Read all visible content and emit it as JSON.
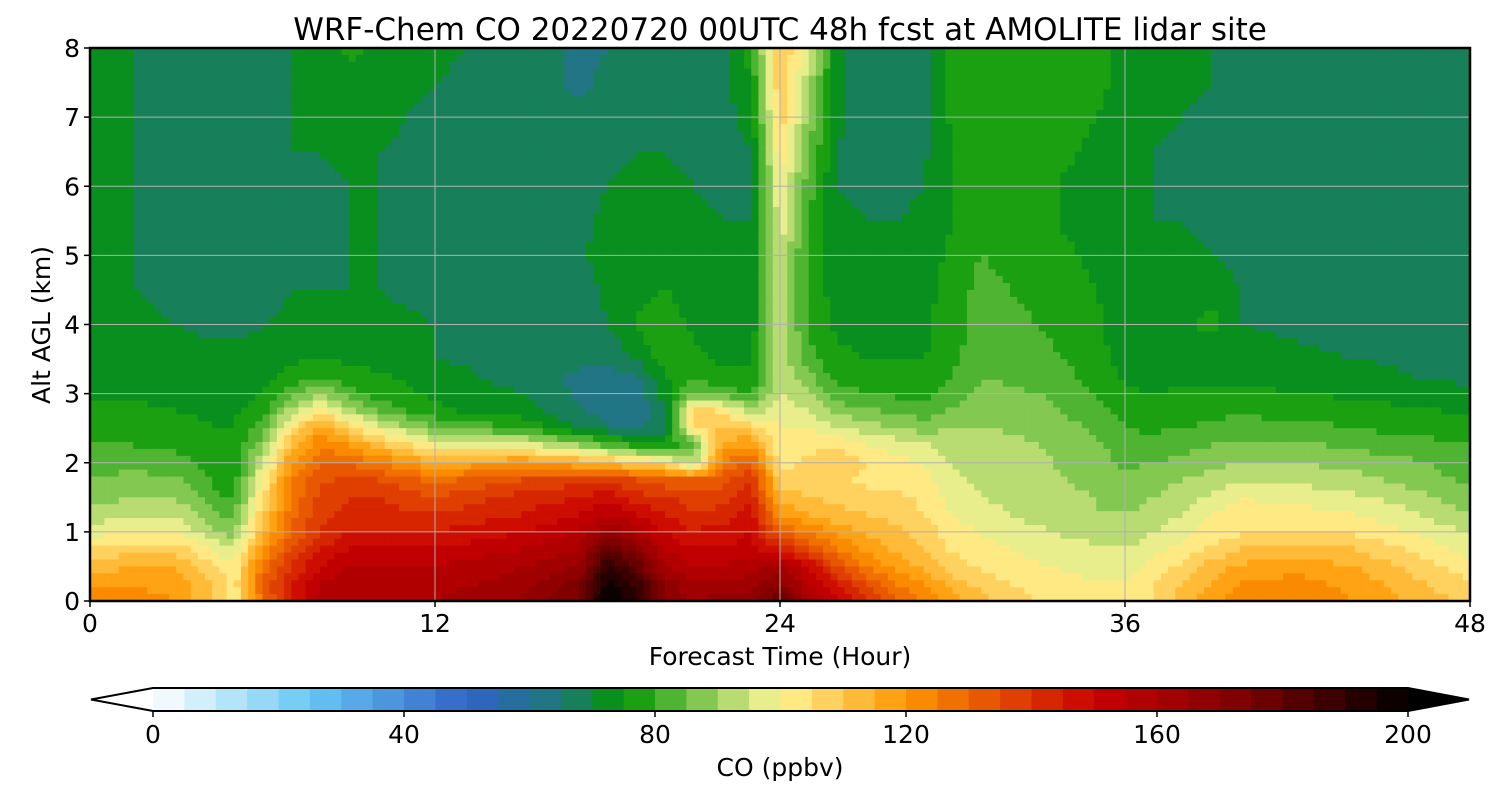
{
  "chart_data": {
    "type": "heatmap",
    "title": "WRF-Chem CO  20220720 00UTC 48h fcst at AMOLITE lidar site",
    "xlabel": "Forecast Time (Hour)",
    "ylabel": "Alt AGL (km)",
    "xlim": [
      0,
      48
    ],
    "ylim": [
      0,
      8
    ],
    "xticks": [
      "0",
      "12",
      "24",
      "36",
      "48"
    ],
    "yticks": [
      "0",
      "1",
      "2",
      "3",
      "4",
      "5",
      "6",
      "7",
      "8"
    ],
    "grid": true,
    "colorbar": {
      "label": "CO  (ppbv)",
      "range": [
        0,
        200
      ],
      "ticks": [
        "0",
        "40",
        "80",
        "120",
        "160",
        "200"
      ],
      "extend": "both",
      "stops": [
        {
          "v": 0,
          "c": "#ffffff"
        },
        {
          "v": 25,
          "c": "#68c8f4"
        },
        {
          "v": 50,
          "c": "#3064c8"
        },
        {
          "v": 65,
          "c": "#1e7878"
        },
        {
          "v": 75,
          "c": "#009600"
        },
        {
          "v": 95,
          "c": "#d2e682"
        },
        {
          "v": 100,
          "c": "#fff596"
        },
        {
          "v": 120,
          "c": "#ff9600"
        },
        {
          "v": 150,
          "c": "#c80000"
        },
        {
          "v": 175,
          "c": "#780000"
        },
        {
          "v": 200,
          "c": "#000000"
        }
      ]
    },
    "x": [
      0,
      1.5,
      3,
      4.5,
      5,
      6,
      7,
      8,
      9,
      10,
      12,
      15,
      17,
      18,
      19,
      20,
      21,
      22,
      23,
      24,
      25,
      26,
      27,
      28,
      29,
      30,
      31,
      33,
      35,
      36,
      37,
      38,
      39,
      40,
      42,
      44,
      46,
      48
    ],
    "y": [
      0,
      0.25,
      0.5,
      0.75,
      1.0,
      1.25,
      1.5,
      1.75,
      2.0,
      2.25,
      2.5,
      2.75,
      3.0,
      3.25,
      3.5,
      3.75,
      4.0,
      4.5,
      5.0,
      5.5,
      6.0,
      6.5,
      7.0,
      7.5,
      8.0
    ],
    "z": [
      [
        125,
        122,
        120,
        108,
        100,
        128,
        145,
        158,
        160,
        160,
        160,
        165,
        175,
        200,
        190,
        170,
        165,
        168,
        170,
        180,
        160,
        150,
        140,
        130,
        125,
        118,
        112,
        105,
        102,
        100,
        105,
        112,
        118,
        122,
        124,
        120,
        114,
        108
      ],
      [
        118,
        120,
        118,
        108,
        102,
        130,
        145,
        155,
        158,
        158,
        158,
        162,
        172,
        198,
        188,
        168,
        160,
        160,
        162,
        170,
        155,
        145,
        135,
        125,
        120,
        112,
        108,
        102,
        100,
        100,
        105,
        110,
        115,
        120,
        122,
        118,
        112,
        105
      ],
      [
        112,
        115,
        115,
        105,
        100,
        128,
        140,
        150,
        155,
        155,
        155,
        160,
        165,
        190,
        180,
        160,
        155,
        155,
        158,
        160,
        150,
        135,
        125,
        118,
        114,
        108,
        104,
        100,
        99,
        98,
        102,
        106,
        112,
        116,
        118,
        115,
        108,
        102
      ],
      [
        105,
        108,
        108,
        98,
        95,
        120,
        135,
        145,
        150,
        150,
        150,
        155,
        160,
        180,
        170,
        155,
        150,
        150,
        152,
        145,
        135,
        125,
        118,
        114,
        110,
        104,
        101,
        99,
        96,
        95,
        98,
        102,
        106,
        110,
        112,
        110,
        104,
        98
      ],
      [
        98,
        100,
        100,
        90,
        88,
        112,
        130,
        140,
        145,
        145,
        145,
        150,
        155,
        165,
        158,
        150,
        145,
        148,
        150,
        130,
        125,
        118,
        114,
        112,
        108,
        102,
        100,
        96,
        92,
        92,
        95,
        98,
        102,
        104,
        105,
        104,
        100,
        94
      ],
      [
        92,
        94,
        94,
        85,
        84,
        108,
        128,
        138,
        142,
        142,
        140,
        145,
        150,
        155,
        150,
        145,
        140,
        142,
        148,
        120,
        115,
        112,
        110,
        108,
        105,
        100,
        97,
        93,
        90,
        90,
        92,
        95,
        100,
        102,
        102,
        100,
        96,
        90
      ],
      [
        88,
        90,
        90,
        80,
        80,
        104,
        126,
        136,
        140,
        140,
        135,
        142,
        145,
        148,
        142,
        140,
        138,
        138,
        145,
        112,
        110,
        108,
        106,
        106,
        104,
        98,
        95,
        92,
        90,
        88,
        90,
        92,
        96,
        100,
        98,
        96,
        92,
        86
      ],
      [
        85,
        87,
        86,
        78,
        78,
        100,
        124,
        134,
        136,
        135,
        128,
        135,
        138,
        140,
        135,
        132,
        130,
        132,
        140,
        108,
        108,
        106,
        104,
        104,
        102,
        96,
        94,
        92,
        88,
        86,
        88,
        90,
        92,
        95,
        94,
        92,
        88,
        84
      ],
      [
        82,
        83,
        82,
        76,
        76,
        94,
        120,
        130,
        130,
        125,
        115,
        120,
        115,
        112,
        108,
        104,
        90,
        125,
        132,
        102,
        106,
        108,
        105,
        102,
        100,
        94,
        93,
        91,
        87,
        84,
        85,
        86,
        88,
        90,
        90,
        88,
        86,
        82
      ],
      [
        80,
        80,
        79,
        76,
        76,
        88,
        112,
        124,
        120,
        112,
        100,
        98,
        90,
        84,
        78,
        76,
        84,
        118,
        120,
        100,
        104,
        104,
        100,
        98,
        96,
        92,
        92,
        90,
        86,
        82,
        82,
        84,
        85,
        86,
        86,
        84,
        82,
        80
      ],
      [
        78,
        78,
        77,
        75,
        75,
        82,
        104,
        118,
        108,
        98,
        85,
        80,
        70,
        66,
        64,
        68,
        104,
        110,
        108,
        100,
        100,
        96,
        92,
        90,
        88,
        90,
        90,
        89,
        84,
        80,
        79,
        80,
        81,
        82,
        82,
        80,
        78,
        78
      ],
      [
        76,
        76,
        75,
        74,
        74,
        78,
        92,
        104,
        92,
        84,
        76,
        72,
        66,
        62,
        60,
        70,
        108,
        104,
        92,
        98,
        95,
        88,
        86,
        84,
        82,
        86,
        88,
        87,
        82,
        78,
        77,
        78,
        79,
        79,
        78,
        77,
        76,
        74
      ],
      [
        74,
        74,
        74,
        73,
        73,
        75,
        82,
        90,
        82,
        78,
        74,
        70,
        64,
        62,
        62,
        72,
        86,
        82,
        80,
        96,
        90,
        82,
        80,
        79,
        78,
        82,
        86,
        85,
        80,
        76,
        75,
        76,
        76,
        76,
        75,
        74,
        72,
        71
      ],
      [
        73,
        73,
        73,
        72,
        72,
        73,
        77,
        80,
        77,
        76,
        72,
        68,
        64,
        63,
        64,
        75,
        80,
        76,
        76,
        95,
        86,
        78,
        77,
        77,
        76,
        80,
        85,
        84,
        78,
        74,
        73,
        74,
        74,
        74,
        73,
        72,
        70,
        69
      ],
      [
        72,
        72,
        72,
        71,
        71,
        72,
        74,
        75,
        74,
        73,
        70,
        68,
        66,
        66,
        70,
        78,
        76,
        74,
        74,
        94,
        82,
        76,
        75,
        75,
        75,
        79,
        84,
        82,
        77,
        73,
        72,
        72,
        72,
        72,
        71,
        70,
        69,
        68
      ],
      [
        72,
        72,
        71,
        70,
        70,
        71,
        72,
        72,
        72,
        72,
        70,
        68,
        66,
        68,
        73,
        79,
        75,
        73,
        73,
        94,
        80,
        75,
        74,
        74,
        74,
        78,
        83,
        81,
        76,
        73,
        72,
        72,
        72,
        71,
        70,
        69,
        68,
        67
      ],
      [
        72,
        71,
        70,
        68,
        68,
        70,
        71,
        71,
        71,
        71,
        70,
        68,
        67,
        70,
        75,
        78,
        74,
        72,
        72,
        94,
        79,
        74,
        73,
        73,
        74,
        78,
        83,
        80,
        76,
        73,
        72,
        72,
        78,
        70,
        69,
        68,
        67,
        66
      ],
      [
        71,
        70,
        69,
        67,
        67,
        68,
        70,
        70,
        70,
        70,
        69,
        68,
        68,
        71,
        74,
        75,
        73,
        71,
        71,
        95,
        78,
        73,
        72,
        72,
        73,
        77,
        82,
        78,
        75,
        72,
        71,
        71,
        72,
        70,
        68,
        67,
        66,
        65
      ],
      [
        71,
        70,
        68,
        67,
        67,
        68,
        69,
        69,
        70,
        70,
        69,
        68,
        69,
        72,
        73,
        73,
        72,
        71,
        71,
        96,
        78,
        73,
        72,
        72,
        73,
        76,
        80,
        77,
        74,
        72,
        71,
        71,
        70,
        69,
        68,
        67,
        66,
        65
      ],
      [
        71,
        70,
        68,
        67,
        67,
        68,
        69,
        69,
        70,
        70,
        69,
        68,
        69,
        71,
        72,
        72,
        71,
        70,
        70,
        98,
        80,
        72,
        70,
        70,
        72,
        75,
        78,
        76,
        73,
        71,
        70,
        70,
        69,
        68,
        67,
        66,
        65,
        65
      ],
      [
        71,
        70,
        68,
        67,
        67,
        68,
        69,
        69,
        70,
        70,
        69,
        68,
        68,
        70,
        71,
        71,
        70,
        69,
        69,
        100,
        82,
        70,
        68,
        67,
        70,
        75,
        77,
        76,
        73,
        71,
        70,
        69,
        68,
        67,
        66,
        65,
        65,
        66
      ],
      [
        71,
        70,
        69,
        68,
        68,
        69,
        70,
        70,
        71,
        70,
        69,
        68,
        67,
        69,
        70,
        70,
        69,
        68,
        70,
        104,
        85,
        70,
        67,
        66,
        69,
        75,
        77,
        77,
        74,
        72,
        70,
        69,
        68,
        67,
        66,
        65,
        66,
        68
      ],
      [
        71,
        70,
        69,
        68,
        68,
        69,
        70,
        70,
        72,
        71,
        69,
        68,
        66,
        67,
        69,
        69,
        69,
        68,
        72,
        108,
        88,
        71,
        66,
        66,
        69,
        76,
        78,
        78,
        75,
        73,
        71,
        70,
        69,
        67,
        66,
        66,
        67,
        69
      ],
      [
        71,
        70,
        69,
        68,
        68,
        69,
        70,
        71,
        74,
        72,
        70,
        68,
        64,
        66,
        68,
        68,
        69,
        68,
        75,
        110,
        92,
        72,
        66,
        66,
        69,
        76,
        79,
        79,
        76,
        74,
        72,
        71,
        70,
        68,
        67,
        67,
        68,
        70
      ],
      [
        71,
        70,
        69,
        68,
        68,
        69,
        70,
        72,
        76,
        74,
        71,
        68,
        64,
        65,
        67,
        67,
        68,
        68,
        78,
        112,
        95,
        72,
        66,
        66,
        69,
        76,
        79,
        79,
        76,
        74,
        72,
        71,
        70,
        68,
        67,
        67,
        68,
        70
      ]
    ]
  }
}
